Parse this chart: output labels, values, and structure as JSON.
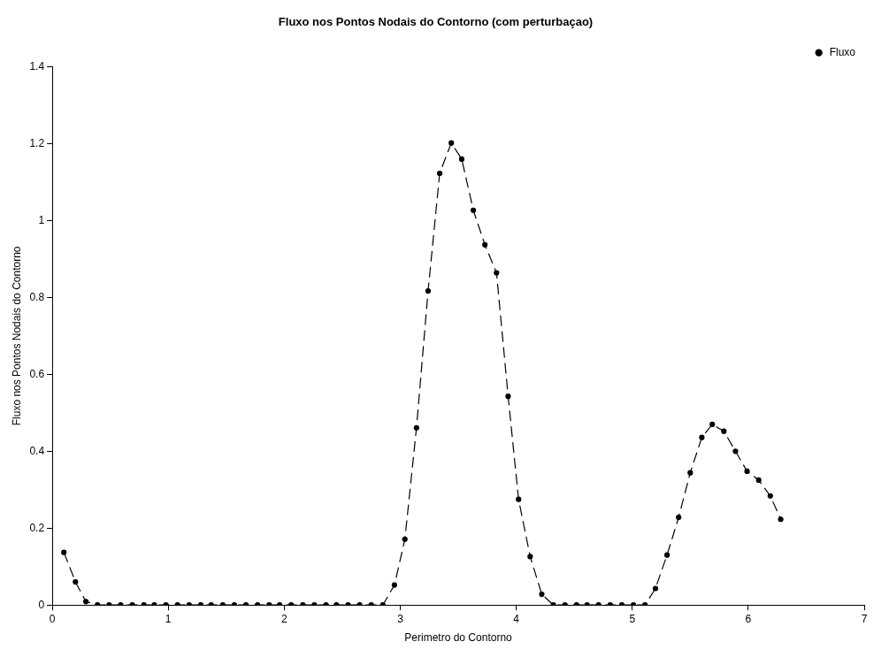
{
  "chart_data": {
    "type": "line",
    "title": "Fluxo nos Pontos Nodais do Contorno (com perturbaçao)",
    "xlabel": "Perimetro do Contorno",
    "ylabel": "Fluxo nos Pontos Nodais do Contorno",
    "x": [
      0.1,
      0.2,
      0.29,
      0.39,
      0.49,
      0.59,
      0.69,
      0.79,
      0.88,
      0.98,
      1.08,
      1.18,
      1.28,
      1.37,
      1.47,
      1.57,
      1.67,
      1.77,
      1.87,
      1.96,
      2.06,
      2.16,
      2.26,
      2.36,
      2.45,
      2.55,
      2.65,
      2.75,
      2.85,
      2.95,
      3.04,
      3.14,
      3.24,
      3.34,
      3.44,
      3.53,
      3.63,
      3.73,
      3.83,
      3.93,
      4.02,
      4.12,
      4.22,
      4.32,
      4.42,
      4.52,
      4.61,
      4.71,
      4.81,
      4.91,
      5.01,
      5.11,
      5.2,
      5.3,
      5.4,
      5.5,
      5.6,
      5.69,
      5.79,
      5.89,
      5.99,
      6.09,
      6.19,
      6.28
    ],
    "series": [
      {
        "name": "Fluxo",
        "color": "#000000",
        "values": [
          0.137,
          0.06,
          0.009,
          0,
          0,
          0,
          0,
          0,
          0,
          0,
          0,
          0,
          0,
          0,
          0,
          0,
          0,
          0,
          0,
          0,
          0,
          0,
          0,
          0,
          0,
          0,
          0,
          0,
          0,
          0.052,
          0.171,
          0.461,
          0.817,
          1.123,
          1.202,
          1.16,
          1.027,
          0.937,
          0.864,
          0.543,
          0.275,
          0.126,
          0.028,
          0,
          0,
          0,
          0,
          0,
          0,
          0,
          0,
          0,
          0.043,
          0.13,
          0.228,
          0.344,
          0.436,
          0.47,
          0.452,
          0.4,
          0.348,
          0.325,
          0.284,
          0.223
        ]
      }
    ],
    "xlim": [
      0,
      7
    ],
    "xticks": [
      0,
      1,
      2,
      3,
      4,
      5,
      6,
      7
    ],
    "ylim": [
      0,
      1.4
    ],
    "yticks": [
      0,
      0.2,
      0.4,
      0.6,
      0.8,
      1,
      1.2,
      1.4
    ],
    "grid": false,
    "legend": "top right",
    "marker": "circle",
    "line_style": "dashed"
  }
}
